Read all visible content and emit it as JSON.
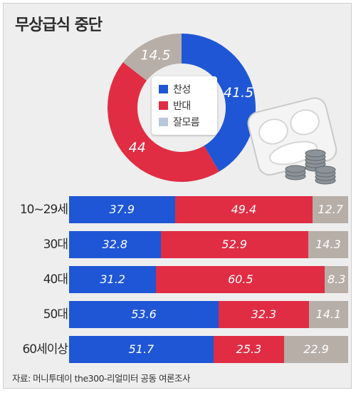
{
  "title": "무상급식 중단",
  "colors": {
    "support": "#1f56d6",
    "oppose": "#e02d44",
    "dontknow": "#b7aea8"
  },
  "legend": [
    "찬성",
    "반대",
    "잘모름"
  ],
  "legend_swatches": [
    "#1f56d6",
    "#e02d44",
    "#b9c7da"
  ],
  "source": "자료: 머니투데이 the300-리얼미터 공동 여론조사",
  "chart_data": [
    {
      "type": "pie",
      "categories": [
        "찬성",
        "반대",
        "잘모름"
      ],
      "values": [
        41.5,
        44,
        14.5
      ]
    },
    {
      "type": "bar",
      "stacked": true,
      "orientation": "horizontal",
      "categories": [
        "10~29세",
        "30대",
        "40대",
        "50대",
        "60세이상"
      ],
      "series": [
        {
          "name": "찬성",
          "values": [
            37.9,
            32.8,
            31.2,
            53.6,
            51.7
          ]
        },
        {
          "name": "반대",
          "values": [
            49.4,
            52.9,
            60.5,
            32.3,
            25.3
          ]
        },
        {
          "name": "잘모름",
          "values": [
            12.7,
            14.3,
            8.3,
            14.1,
            22.9
          ]
        }
      ]
    }
  ]
}
